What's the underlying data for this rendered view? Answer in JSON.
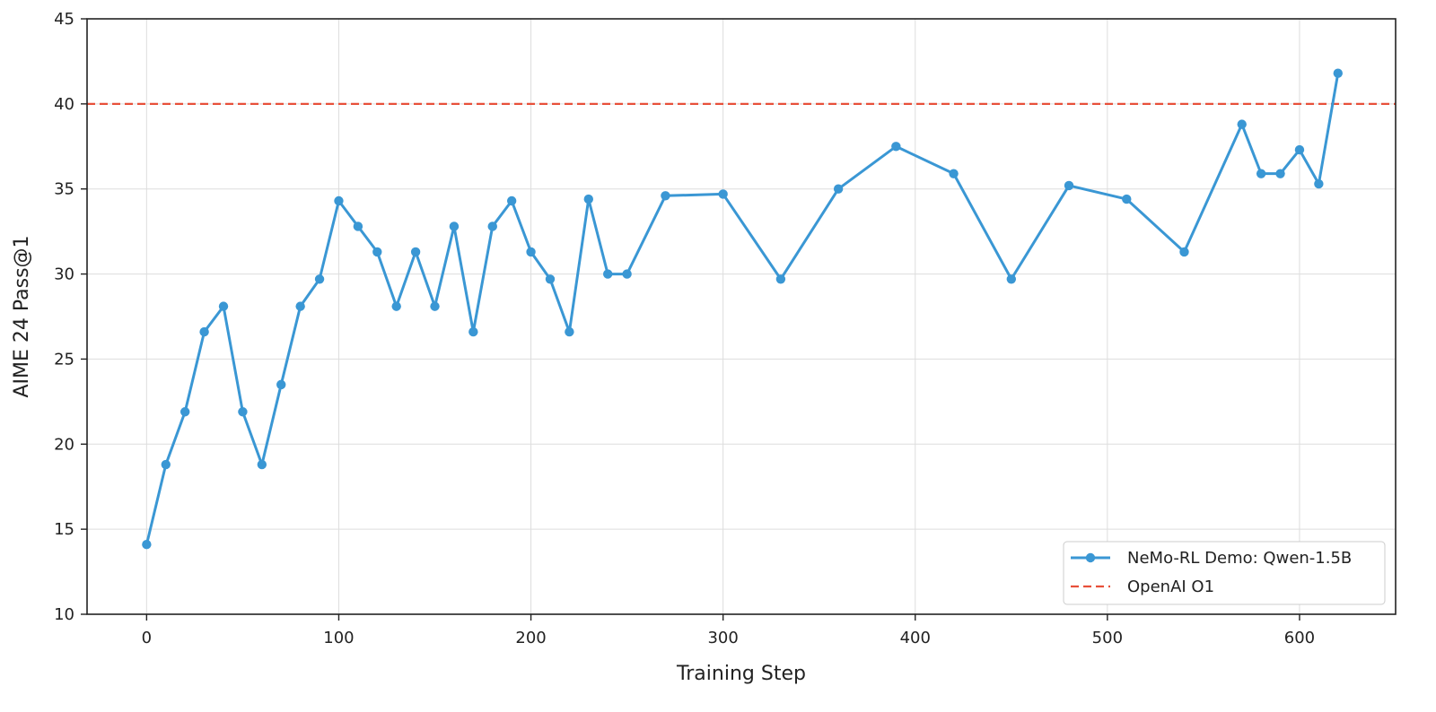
{
  "chart_data": {
    "type": "line",
    "title": "",
    "xlabel": "Training Step",
    "ylabel": "AIME 24 Pass@1",
    "xlim": [
      -31,
      650
    ],
    "ylim": [
      10,
      45
    ],
    "xticks": [
      0,
      100,
      200,
      300,
      400,
      500,
      600
    ],
    "yticks": [
      10,
      15,
      20,
      25,
      30,
      35,
      40,
      45
    ],
    "grid": true,
    "legend_position": "bottom-right",
    "series": [
      {
        "name": "NeMo-RL Demo: Qwen-1.5B",
        "style": "line-marker",
        "color": "#3a97d4",
        "x": [
          0,
          10,
          20,
          30,
          40,
          50,
          60,
          70,
          80,
          90,
          100,
          110,
          120,
          130,
          140,
          150,
          160,
          170,
          180,
          190,
          200,
          210,
          220,
          230,
          240,
          250,
          270,
          300,
          330,
          360,
          390,
          420,
          450,
          480,
          510,
          540,
          570,
          580,
          590,
          600,
          610,
          620
        ],
        "y": [
          14.1,
          18.8,
          21.9,
          26.6,
          28.1,
          21.9,
          18.8,
          23.5,
          28.1,
          29.7,
          34.3,
          32.8,
          31.3,
          28.1,
          31.3,
          28.1,
          32.8,
          26.6,
          32.8,
          34.3,
          31.3,
          29.7,
          26.6,
          34.4,
          30.0,
          30.0,
          34.6,
          34.7,
          29.7,
          35.0,
          37.5,
          35.9,
          29.7,
          35.2,
          34.4,
          31.3,
          38.8,
          35.9,
          35.9,
          37.3,
          35.3,
          41.8
        ]
      },
      {
        "name": "OpenAI O1",
        "style": "dashed-hline",
        "color": "#e8503a",
        "y": 40
      }
    ]
  }
}
